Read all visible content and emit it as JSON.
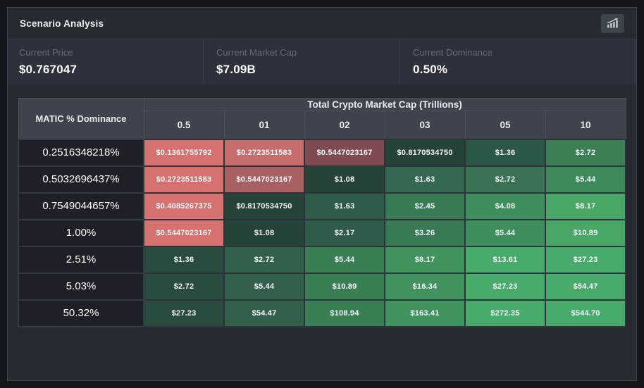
{
  "panel": {
    "title": "Scenario Analysis",
    "header_icon": "chart-increasing-icon"
  },
  "stats": [
    {
      "label": "Current Price",
      "value": "$0.767047"
    },
    {
      "label": "Current Market Cap",
      "value": "$7.09B"
    },
    {
      "label": "Current Dominance",
      "value": "0.50%"
    }
  ],
  "table": {
    "corner_header": "MATIC % Dominance",
    "group_header": "Total Crypto Market Cap (Trillions)",
    "column_headers": [
      "0.5",
      "01",
      "02",
      "03",
      "05",
      "10"
    ],
    "rows": [
      {
        "label": "0.2516348218%",
        "cells": [
          {
            "text": "$0.1361755792",
            "bg": "#d5716e"
          },
          {
            "text": "$0.2723511583",
            "bg": "#c76c6c"
          },
          {
            "text": "$0.5447023167",
            "bg": "#7f4b52"
          },
          {
            "text": "$0.8170534750",
            "bg": "#26433a"
          },
          {
            "text": "$1.36",
            "bg": "#2d5745"
          },
          {
            "text": "$2.72",
            "bg": "#3c7e55"
          }
        ]
      },
      {
        "label": "0.5032696437%",
        "cells": [
          {
            "text": "$0.2723511583",
            "bg": "#d5716e"
          },
          {
            "text": "$0.5447023167",
            "bg": "#a86063"
          },
          {
            "text": "$1.08",
            "bg": "#26433a"
          },
          {
            "text": "$1.63",
            "bg": "#346851"
          },
          {
            "text": "$2.72",
            "bg": "#3a7253"
          },
          {
            "text": "$5.44",
            "bg": "#3f8a5c"
          }
        ]
      },
      {
        "label": "0.7549044657%",
        "cells": [
          {
            "text": "$0.4085267375",
            "bg": "#d5716e"
          },
          {
            "text": "$0.8170534750",
            "bg": "#26433a"
          },
          {
            "text": "$1.63",
            "bg": "#2e5c48"
          },
          {
            "text": "$2.45",
            "bg": "#377a54"
          },
          {
            "text": "$4.08",
            "bg": "#3f8e5e"
          },
          {
            "text": "$8.17",
            "bg": "#48a767"
          }
        ]
      },
      {
        "label": "1.00%",
        "cells": [
          {
            "text": "$0.5447023167",
            "bg": "#d5716e"
          },
          {
            "text": "$1.08",
            "bg": "#26433a"
          },
          {
            "text": "$2.17",
            "bg": "#2e5c48"
          },
          {
            "text": "$3.26",
            "bg": "#377a54"
          },
          {
            "text": "$5.44",
            "bg": "#3f8e5e"
          },
          {
            "text": "$10.89",
            "bg": "#48a767"
          }
        ]
      },
      {
        "label": "2.51%",
        "cells": [
          {
            "text": "$1.36",
            "bg": "#2a4c3e"
          },
          {
            "text": "$2.72",
            "bg": "#33604a"
          },
          {
            "text": "$5.44",
            "bg": "#3a7e55"
          },
          {
            "text": "$8.17",
            "bg": "#40925f"
          },
          {
            "text": "$13.61",
            "bg": "#49ab6b"
          },
          {
            "text": "$27.23",
            "bg": "#49ab6b"
          }
        ]
      },
      {
        "label": "5.03%",
        "cells": [
          {
            "text": "$2.72",
            "bg": "#2a4c3e"
          },
          {
            "text": "$5.44",
            "bg": "#33604a"
          },
          {
            "text": "$10.89",
            "bg": "#3a7e55"
          },
          {
            "text": "$16.34",
            "bg": "#40925f"
          },
          {
            "text": "$27.23",
            "bg": "#49ab6b"
          },
          {
            "text": "$54.47",
            "bg": "#49ab6b"
          }
        ]
      },
      {
        "label": "50.32%",
        "cells": [
          {
            "text": "$27.23",
            "bg": "#2a4c3e"
          },
          {
            "text": "$54.47",
            "bg": "#33604a"
          },
          {
            "text": "$108.94",
            "bg": "#3a7e55"
          },
          {
            "text": "$163.41",
            "bg": "#40925f"
          },
          {
            "text": "$272.35",
            "bg": "#49ab6b"
          },
          {
            "text": "$544.70",
            "bg": "#49ab6b"
          }
        ]
      }
    ]
  }
}
